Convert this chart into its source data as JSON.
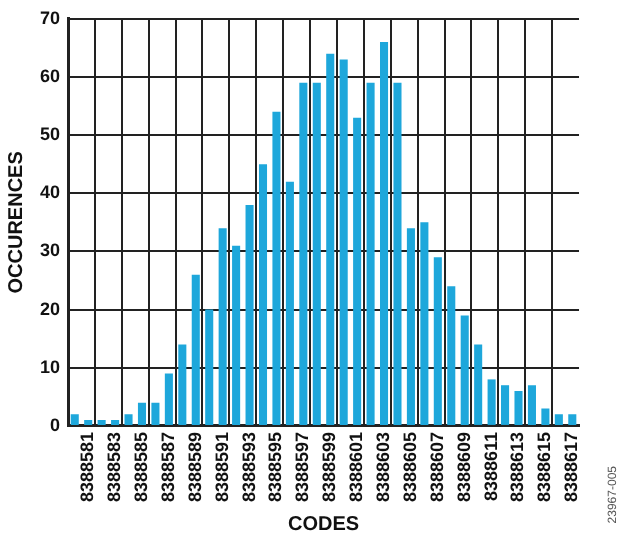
{
  "chart_data": {
    "type": "bar",
    "xlabel": "CODES",
    "ylabel": "OCCURENCES",
    "categories": [
      null,
      "8388581",
      null,
      "8388583",
      null,
      "8388585",
      null,
      "8388587",
      null,
      "8388589",
      null,
      "8388591",
      null,
      "8388593",
      null,
      "8388595",
      null,
      "8388597",
      null,
      "8388599",
      null,
      "8388601",
      null,
      "8388603",
      null,
      "8388605",
      null,
      "8388607",
      null,
      "8388609",
      null,
      "8388611",
      null,
      "8388613",
      null,
      "8388615",
      null,
      "8388617"
    ],
    "values": [
      2,
      1,
      1,
      1,
      2,
      4,
      4,
      9,
      14,
      26,
      20,
      34,
      31,
      38,
      45,
      54,
      42,
      59,
      59,
      64,
      63,
      53,
      59,
      66,
      59,
      34,
      35,
      29,
      24,
      19,
      14,
      8,
      7,
      6,
      7,
      3,
      2,
      2
    ],
    "color": "#1ea7db",
    "ylim": [
      0,
      70
    ],
    "yticks": [
      0,
      10,
      20,
      30,
      40,
      50,
      60,
      70
    ],
    "grid": true,
    "annotations": [
      "23967-005"
    ]
  }
}
